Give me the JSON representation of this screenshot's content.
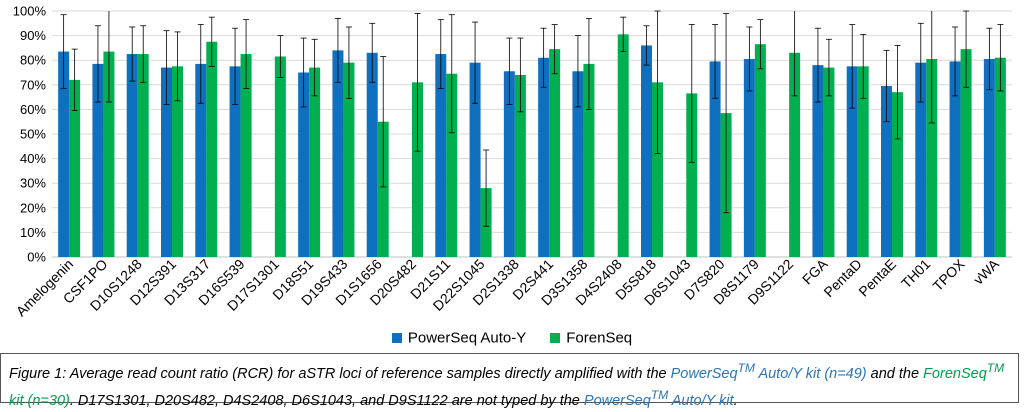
{
  "chart_data": {
    "type": "bar",
    "categories": [
      "Amelogenin",
      "CSF1PO",
      "D10S1248",
      "D12S391",
      "D13S317",
      "D16S539",
      "D17S1301",
      "D18S51",
      "D19S433",
      "D1S1656",
      "D20S482",
      "D21S11",
      "D22S1045",
      "D2S1338",
      "D2S441",
      "D3S1358",
      "D4S2408",
      "D5S818",
      "D6S1043",
      "D7S820",
      "D8S1179",
      "D9S1122",
      "FGA",
      "PentaD",
      "PentaE",
      "TH01",
      "TPOX",
      "vWA"
    ],
    "series": [
      {
        "name": "PowerSeq Auto-Y",
        "color": "#0F70C0",
        "values": [
          83.5,
          78.5,
          82.5,
          77,
          78.5,
          77.5,
          null,
          75,
          84,
          83,
          null,
          82.5,
          79,
          75.5,
          81,
          75.5,
          null,
          86,
          null,
          79.5,
          80.5,
          null,
          78,
          77.5,
          69.5,
          79,
          79.5,
          80.5
        ],
        "error": [
          15,
          15.5,
          11,
          15,
          16,
          15.5,
          null,
          14,
          13,
          12,
          null,
          14,
          16.5,
          13.5,
          12,
          14.5,
          null,
          8,
          null,
          15,
          13,
          null,
          15,
          17,
          14.5,
          16,
          14,
          12.5
        ]
      },
      {
        "name": "ForenSeq",
        "color": "#00B050",
        "values": [
          72,
          83.5,
          82.5,
          77.5,
          87.5,
          82.5,
          81.5,
          77,
          79,
          55,
          71,
          74.5,
          28,
          74,
          84.5,
          78.5,
          90.5,
          71,
          66.5,
          58.5,
          86.5,
          83,
          77,
          77.5,
          67,
          80.5,
          84.5,
          81
        ],
        "error": [
          12.5,
          20.5,
          11.5,
          14,
          10,
          14,
          8.5,
          11.5,
          14.5,
          26.5,
          28,
          24,
          15.5,
          15,
          10,
          18.5,
          7,
          29,
          28,
          40.5,
          10,
          17.5,
          11.5,
          13,
          19,
          26,
          15.5,
          13.5
        ]
      }
    ],
    "ylim": [
      0,
      100
    ],
    "yticks": [
      "0%",
      "10%",
      "20%",
      "30%",
      "40%",
      "50%",
      "60%",
      "70%",
      "80%",
      "90%",
      "100%"
    ],
    "legend_position": "bottom"
  },
  "caption": {
    "prefix": "Figure 1: Average read count ratio (RCR) for aSTR loci of reference samples directly amplified with the ",
    "kit1": "PowerSeq",
    "kit1_sup": "TM",
    "kit1_suffix": " Auto/Y kit (n=49)",
    "middle": " and the ",
    "kit2": "ForenSeq",
    "kit2_sup": "TM",
    "kit2_suffix": " kit (n=30)",
    "after": ". D17S1301, D20S482, D4S2408, D6S1043, and D9S1122 are not typed by the ",
    "kit3": "PowerSeq",
    "kit3_sup": "TM",
    "kit3_suffix": " Auto/Y kit",
    "end": "."
  }
}
